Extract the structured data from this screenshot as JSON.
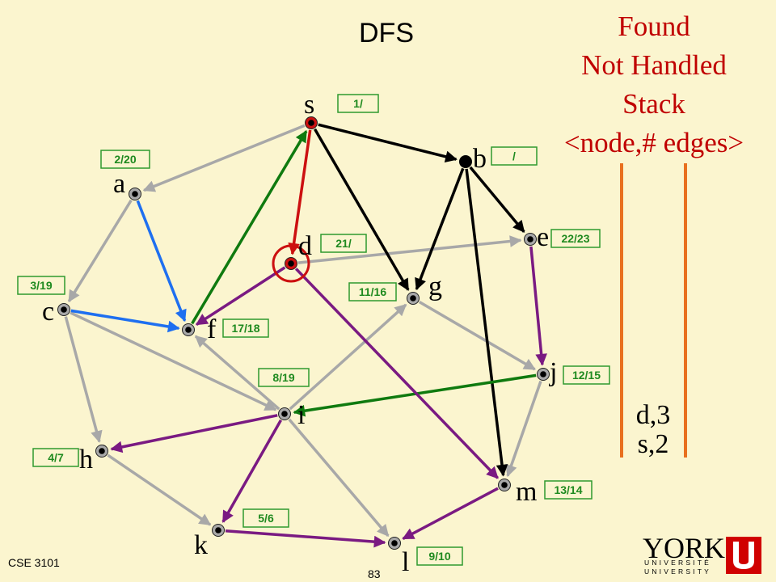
{
  "title": "DFS",
  "legend": {
    "line1": "Found",
    "line2": "Not Handled",
    "line3": "Stack",
    "line4": "<node,# edges>"
  },
  "stack": [
    "d,3",
    "s,2"
  ],
  "footer": {
    "course": "CSE 3101",
    "page": "83"
  },
  "logo": {
    "word": "YORK",
    "line1": "UNIVERSITÉ",
    "line2": "UNIVERSITY"
  },
  "colors": {
    "background": "#fbf5cf",
    "gray_edge": "#a8a8a8",
    "black_edge": "#000000",
    "red": "#cc1010",
    "green": "#0f7a0f",
    "blue": "#1e6ff0",
    "purple": "#7a1a82",
    "orange": "#e8701f",
    "time_label": "#1f8a1f"
  },
  "nodes": [
    {
      "id": "s",
      "label": "s",
      "time": "1/"
    },
    {
      "id": "a",
      "label": "a",
      "time": "2/20"
    },
    {
      "id": "b",
      "label": "b",
      "time": "/"
    },
    {
      "id": "c",
      "label": "c",
      "time": "3/19"
    },
    {
      "id": "d",
      "label": "d",
      "time": "21/"
    },
    {
      "id": "e",
      "label": "e",
      "time": "22/23"
    },
    {
      "id": "f",
      "label": "f",
      "time": "17/18"
    },
    {
      "id": "g",
      "label": "g",
      "time": "11/16"
    },
    {
      "id": "h",
      "label": "h",
      "time": "4/7"
    },
    {
      "id": "i",
      "label": "i",
      "time": "8/19"
    },
    {
      "id": "j",
      "label": "j",
      "time": "12/15"
    },
    {
      "id": "k",
      "label": "k",
      "time": "5/6"
    },
    {
      "id": "l",
      "label": "l",
      "time": "9/10"
    },
    {
      "id": "m",
      "label": "m",
      "time": "13/14"
    }
  ],
  "edges": [
    {
      "from": "s",
      "to": "a",
      "color": "gray"
    },
    {
      "from": "a",
      "to": "c",
      "color": "gray"
    },
    {
      "from": "c",
      "to": "h",
      "color": "gray"
    },
    {
      "from": "c",
      "to": "i",
      "color": "gray"
    },
    {
      "from": "h",
      "to": "k",
      "color": "gray"
    },
    {
      "from": "i",
      "to": "f",
      "color": "gray"
    },
    {
      "from": "i",
      "to": "g",
      "color": "gray"
    },
    {
      "from": "i",
      "to": "l",
      "color": "gray"
    },
    {
      "from": "g",
      "to": "j",
      "color": "gray"
    },
    {
      "from": "j",
      "to": "m",
      "color": "gray"
    },
    {
      "from": "d",
      "to": "e",
      "color": "gray"
    },
    {
      "from": "s",
      "to": "b",
      "color": "black"
    },
    {
      "from": "s",
      "to": "g",
      "color": "black"
    },
    {
      "from": "b",
      "to": "e",
      "color": "black"
    },
    {
      "from": "b",
      "to": "g",
      "color": "black"
    },
    {
      "from": "b",
      "to": "m",
      "color": "black"
    },
    {
      "from": "s",
      "to": "d",
      "color": "red"
    },
    {
      "from": "f",
      "to": "s",
      "color": "green"
    },
    {
      "from": "j",
      "to": "i",
      "color": "green"
    },
    {
      "from": "a",
      "to": "f",
      "color": "blue"
    },
    {
      "from": "c",
      "to": "f",
      "color": "blue"
    },
    {
      "from": "d",
      "to": "f",
      "color": "purple"
    },
    {
      "from": "d",
      "to": "m",
      "color": "purple"
    },
    {
      "from": "e",
      "to": "j",
      "color": "purple"
    },
    {
      "from": "i",
      "to": "h",
      "color": "purple"
    },
    {
      "from": "i",
      "to": "k",
      "color": "purple"
    },
    {
      "from": "m",
      "to": "l",
      "color": "purple"
    },
    {
      "from": "k",
      "to": "l",
      "color": "purple"
    }
  ]
}
